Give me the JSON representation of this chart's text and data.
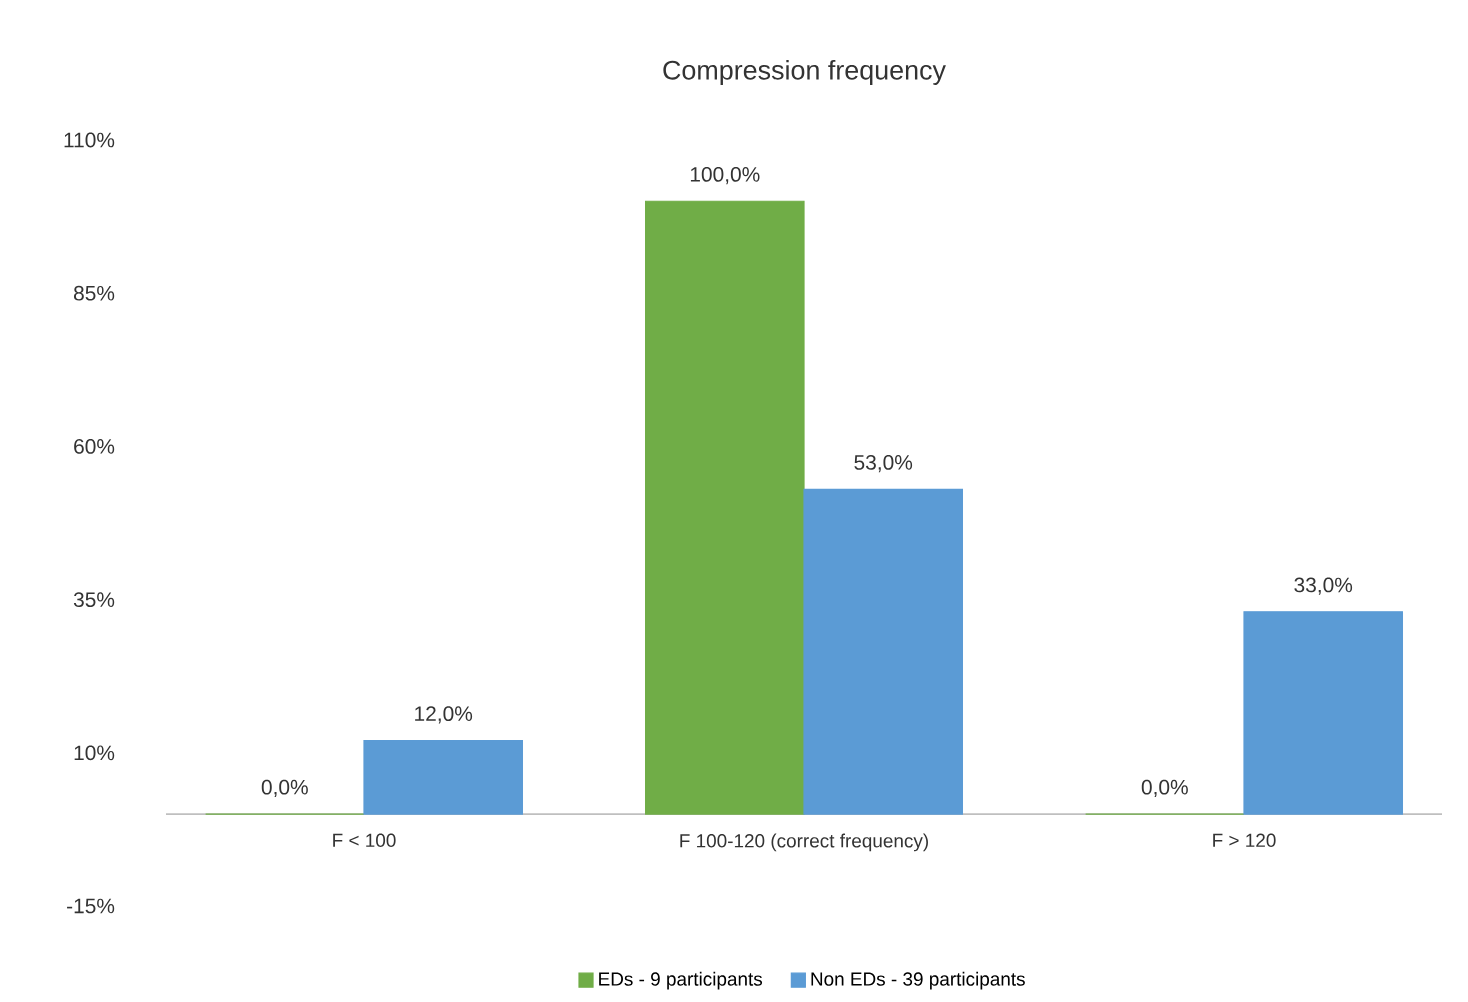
{
  "chart_data": {
    "type": "bar",
    "title": "Compression frequency",
    "categories": [
      "F < 100",
      "F 100-120 (correct frequency)",
      "F > 120"
    ],
    "series": [
      {
        "name": "EDs - 9 participants",
        "color": "#70ad47",
        "values": [
          0,
          100,
          0
        ],
        "value_labels": [
          "0,0%",
          "100,0%",
          "0,0%"
        ]
      },
      {
        "name": "Non EDs - 39 participants",
        "color": "#5b9bd5",
        "values": [
          12,
          53,
          33
        ],
        "value_labels": [
          "12,0%",
          "53,0%",
          "33,0%"
        ]
      }
    ],
    "ylim": [
      -15,
      110
    ],
    "yticks": [
      {
        "value": -15,
        "label": "-15%"
      },
      {
        "value": 10,
        "label": "10%"
      },
      {
        "value": 35,
        "label": "35%"
      },
      {
        "value": 60,
        "label": "60%"
      },
      {
        "value": 85,
        "label": "85%"
      },
      {
        "value": 110,
        "label": "110%"
      }
    ],
    "legend": "bottom"
  }
}
